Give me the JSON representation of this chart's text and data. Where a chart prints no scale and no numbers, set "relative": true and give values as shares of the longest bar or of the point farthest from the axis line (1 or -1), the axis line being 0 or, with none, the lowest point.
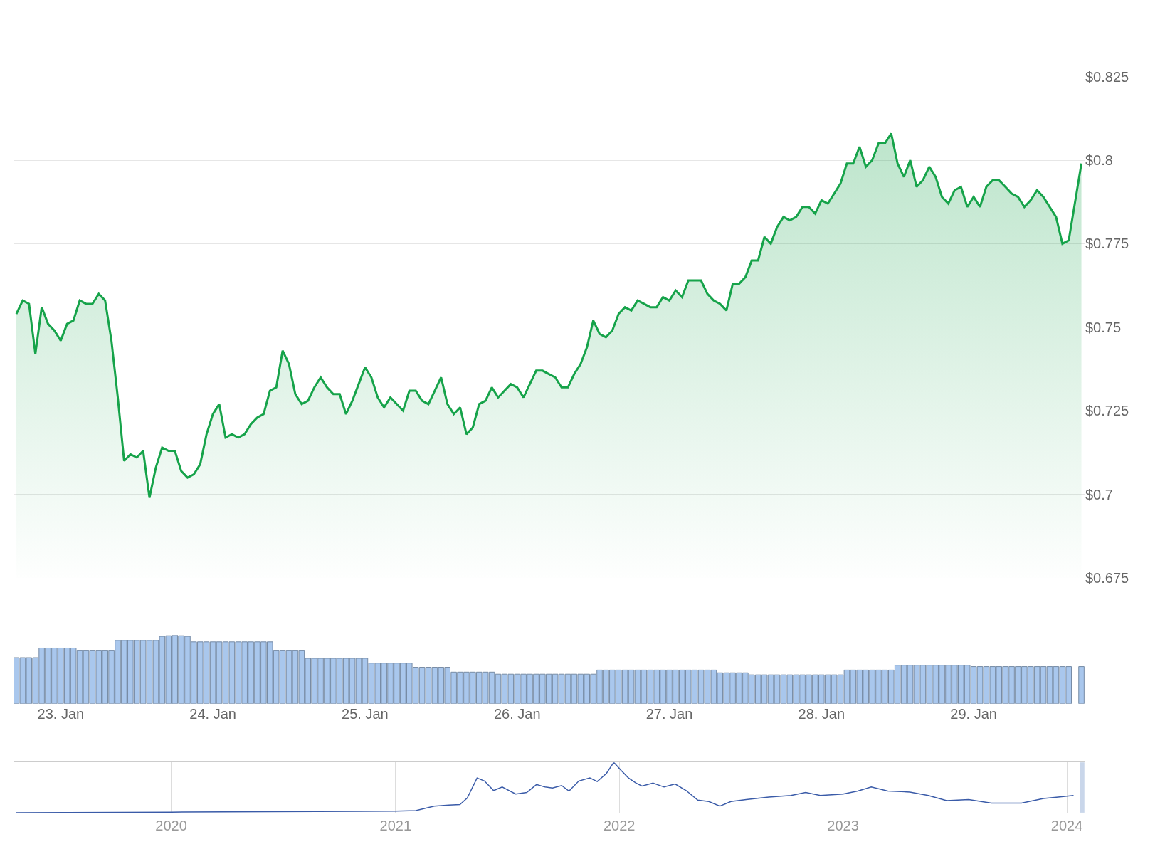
{
  "chart_data": [
    {
      "type": "area",
      "tick_labels": "y",
      "grid": "y",
      "xlim": [
        "2024-01-22T16:40",
        "2024-01-29T17:30"
      ],
      "ylim": [
        0.675,
        0.825
      ],
      "yticks": [
        {
          "value": 0.675,
          "label": "$0.675"
        },
        {
          "value": 0.7,
          "label": "$0.7"
        },
        {
          "value": 0.725,
          "label": "$0.725"
        },
        {
          "value": 0.75,
          "label": "$0.75"
        },
        {
          "value": 0.775,
          "label": "$0.775"
        },
        {
          "value": 0.8,
          "label": "$0.8"
        },
        {
          "value": 0.825,
          "label": "$0.825"
        }
      ],
      "x": [
        "2024-01-22T17:00",
        "2024-01-22T18:00",
        "2024-01-22T19:00",
        "2024-01-22T20:00",
        "2024-01-22T21:00",
        "2024-01-22T22:00",
        "2024-01-22T23:00",
        "2024-01-23T00:00",
        "2024-01-23T01:00",
        "2024-01-23T02:00",
        "2024-01-23T03:00",
        "2024-01-23T04:00",
        "2024-01-23T05:00",
        "2024-01-23T06:00",
        "2024-01-23T07:00",
        "2024-01-23T08:00",
        "2024-01-23T09:00",
        "2024-01-23T10:00",
        "2024-01-23T11:00",
        "2024-01-23T12:00",
        "2024-01-23T13:00",
        "2024-01-23T14:00",
        "2024-01-23T15:00",
        "2024-01-23T16:00",
        "2024-01-23T17:00",
        "2024-01-23T18:00",
        "2024-01-23T19:00",
        "2024-01-23T20:00",
        "2024-01-23T21:00",
        "2024-01-23T22:00",
        "2024-01-23T23:00",
        "2024-01-24T00:00",
        "2024-01-24T01:00",
        "2024-01-24T02:00",
        "2024-01-24T03:00",
        "2024-01-24T04:00",
        "2024-01-24T05:00",
        "2024-01-24T06:00",
        "2024-01-24T07:00",
        "2024-01-24T08:00",
        "2024-01-24T09:00",
        "2024-01-24T10:00",
        "2024-01-24T11:00",
        "2024-01-24T12:00",
        "2024-01-24T13:00",
        "2024-01-24T14:00",
        "2024-01-24T15:00",
        "2024-01-24T16:00",
        "2024-01-24T17:00",
        "2024-01-24T18:00",
        "2024-01-24T19:00",
        "2024-01-24T20:00",
        "2024-01-24T21:00",
        "2024-01-24T22:00",
        "2024-01-24T23:00",
        "2024-01-25T00:00",
        "2024-01-25T01:00",
        "2024-01-25T02:00",
        "2024-01-25T03:00",
        "2024-01-25T04:00",
        "2024-01-25T05:00",
        "2024-01-25T06:00",
        "2024-01-25T07:00",
        "2024-01-25T08:00",
        "2024-01-25T09:00",
        "2024-01-25T10:00",
        "2024-01-25T11:00",
        "2024-01-25T12:00",
        "2024-01-25T13:00",
        "2024-01-25T14:00",
        "2024-01-25T15:00",
        "2024-01-25T16:00",
        "2024-01-25T17:00",
        "2024-01-25T18:00",
        "2024-01-25T19:00",
        "2024-01-25T20:00",
        "2024-01-25T21:00",
        "2024-01-25T22:00",
        "2024-01-25T23:00",
        "2024-01-26T00:00",
        "2024-01-26T01:00",
        "2024-01-26T02:00",
        "2024-01-26T03:00",
        "2024-01-26T04:00",
        "2024-01-26T05:00",
        "2024-01-26T06:00",
        "2024-01-26T07:00",
        "2024-01-26T08:00",
        "2024-01-26T09:00",
        "2024-01-26T10:00",
        "2024-01-26T11:00",
        "2024-01-26T12:00",
        "2024-01-26T13:00",
        "2024-01-26T14:00",
        "2024-01-26T15:00",
        "2024-01-26T16:00",
        "2024-01-26T17:00",
        "2024-01-26T18:00",
        "2024-01-26T19:00",
        "2024-01-26T20:00",
        "2024-01-26T21:00",
        "2024-01-26T22:00",
        "2024-01-26T23:00",
        "2024-01-27T00:00",
        "2024-01-27T01:00",
        "2024-01-27T02:00",
        "2024-01-27T03:00",
        "2024-01-27T04:00",
        "2024-01-27T05:00",
        "2024-01-27T06:00",
        "2024-01-27T07:00",
        "2024-01-27T08:00",
        "2024-01-27T09:00",
        "2024-01-27T10:00",
        "2024-01-27T11:00",
        "2024-01-27T12:00",
        "2024-01-27T13:00",
        "2024-01-27T14:00",
        "2024-01-27T15:00",
        "2024-01-27T16:00",
        "2024-01-27T17:00",
        "2024-01-27T18:00",
        "2024-01-27T19:00",
        "2024-01-27T20:00",
        "2024-01-27T21:00",
        "2024-01-27T22:00",
        "2024-01-27T23:00",
        "2024-01-28T00:00",
        "2024-01-28T01:00",
        "2024-01-28T02:00",
        "2024-01-28T03:00",
        "2024-01-28T04:00",
        "2024-01-28T05:00",
        "2024-01-28T06:00",
        "2024-01-28T07:00",
        "2024-01-28T08:00",
        "2024-01-28T09:00",
        "2024-01-28T10:00",
        "2024-01-28T11:00",
        "2024-01-28T12:00",
        "2024-01-28T13:00",
        "2024-01-28T14:00",
        "2024-01-28T15:00",
        "2024-01-28T16:00",
        "2024-01-28T17:00",
        "2024-01-28T18:00",
        "2024-01-28T19:00",
        "2024-01-28T20:00",
        "2024-01-28T21:00",
        "2024-01-28T22:00",
        "2024-01-28T23:00",
        "2024-01-29T00:00",
        "2024-01-29T01:00",
        "2024-01-29T02:00",
        "2024-01-29T03:00",
        "2024-01-29T04:00",
        "2024-01-29T05:00",
        "2024-01-29T06:00",
        "2024-01-29T07:00",
        "2024-01-29T08:00",
        "2024-01-29T09:00",
        "2024-01-29T10:00",
        "2024-01-29T11:00",
        "2024-01-29T12:00",
        "2024-01-29T13:00",
        "2024-01-29T14:00",
        "2024-01-29T15:00",
        "2024-01-29T17:00"
      ],
      "series": [
        {
          "color": "#16a34a",
          "values": [
            0.754,
            0.758,
            0.757,
            0.742,
            0.756,
            0.751,
            0.749,
            0.746,
            0.751,
            0.752,
            0.758,
            0.757,
            0.757,
            0.76,
            0.758,
            0.746,
            0.729,
            0.71,
            0.712,
            0.711,
            0.713,
            0.699,
            0.708,
            0.714,
            0.713,
            0.713,
            0.707,
            0.705,
            0.706,
            0.709,
            0.718,
            0.724,
            0.727,
            0.717,
            0.718,
            0.717,
            0.718,
            0.721,
            0.723,
            0.724,
            0.731,
            0.732,
            0.743,
            0.739,
            0.73,
            0.727,
            0.728,
            0.732,
            0.735,
            0.732,
            0.73,
            0.73,
            0.724,
            0.728,
            0.733,
            0.738,
            0.735,
            0.729,
            0.726,
            0.729,
            0.727,
            0.725,
            0.731,
            0.731,
            0.728,
            0.727,
            0.731,
            0.735,
            0.727,
            0.724,
            0.726,
            0.718,
            0.72,
            0.727,
            0.728,
            0.732,
            0.729,
            0.731,
            0.733,
            0.732,
            0.729,
            0.733,
            0.737,
            0.737,
            0.736,
            0.735,
            0.732,
            0.732,
            0.736,
            0.739,
            0.744,
            0.752,
            0.748,
            0.747,
            0.749,
            0.754,
            0.756,
            0.755,
            0.758,
            0.757,
            0.756,
            0.756,
            0.759,
            0.758,
            0.761,
            0.759,
            0.764,
            0.764,
            0.764,
            0.76,
            0.758,
            0.757,
            0.755,
            0.763,
            0.763,
            0.765,
            0.77,
            0.77,
            0.777,
            0.775,
            0.78,
            0.783,
            0.782,
            0.783,
            0.786,
            0.786,
            0.784,
            0.788,
            0.787,
            0.79,
            0.793,
            0.799,
            0.799,
            0.804,
            0.798,
            0.8,
            0.805,
            0.805,
            0.808,
            0.799,
            0.795,
            0.8,
            0.792,
            0.794,
            0.798,
            0.795,
            0.789,
            0.787,
            0.791,
            0.792,
            0.786,
            0.789,
            0.786,
            0.792,
            0.794,
            0.794,
            0.792,
            0.79,
            0.789,
            0.786,
            0.788,
            0.791,
            0.789,
            0.786,
            0.783,
            0.775,
            0.776,
            0.799
          ]
        }
      ]
    },
    {
      "type": "bar",
      "relative": true,
      "tick_labels": "x",
      "xlim": [
        "2024-01-22T16:40",
        "2024-01-29T17:30"
      ],
      "xticks": [
        {
          "value": "2024-01-23",
          "label": "23. Jan"
        },
        {
          "value": "2024-01-24",
          "label": "24. Jan"
        },
        {
          "value": "2024-01-25",
          "label": "25. Jan"
        },
        {
          "value": "2024-01-26",
          "label": "26. Jan"
        },
        {
          "value": "2024-01-27",
          "label": "27. Jan"
        },
        {
          "value": "2024-01-28",
          "label": "28. Jan"
        },
        {
          "value": "2024-01-29",
          "label": "29. Jan"
        }
      ],
      "x": [
        "2024-01-22T17:00",
        "2024-01-22T18:00",
        "2024-01-22T19:00",
        "2024-01-22T20:00",
        "2024-01-22T21:00",
        "2024-01-22T22:00",
        "2024-01-22T23:00",
        "2024-01-23T00:00",
        "2024-01-23T01:00",
        "2024-01-23T02:00",
        "2024-01-23T03:00",
        "2024-01-23T04:00",
        "2024-01-23T05:00",
        "2024-01-23T06:00",
        "2024-01-23T07:00",
        "2024-01-23T08:00",
        "2024-01-23T09:00",
        "2024-01-23T10:00",
        "2024-01-23T11:00",
        "2024-01-23T12:00",
        "2024-01-23T13:00",
        "2024-01-23T14:00",
        "2024-01-23T15:00",
        "2024-01-23T16:00",
        "2024-01-23T17:00",
        "2024-01-23T18:00",
        "2024-01-23T19:00",
        "2024-01-23T20:00",
        "2024-01-23T21:00",
        "2024-01-23T22:00",
        "2024-01-23T23:00",
        "2024-01-24T00:00",
        "2024-01-24T01:00",
        "2024-01-24T02:00",
        "2024-01-24T03:00",
        "2024-01-24T04:00",
        "2024-01-24T05:00",
        "2024-01-24T06:00",
        "2024-01-24T07:00",
        "2024-01-24T08:00",
        "2024-01-24T09:00",
        "2024-01-24T10:00",
        "2024-01-24T11:00",
        "2024-01-24T12:00",
        "2024-01-24T13:00",
        "2024-01-24T14:00",
        "2024-01-24T15:00",
        "2024-01-24T16:00",
        "2024-01-24T17:00",
        "2024-01-24T18:00",
        "2024-01-24T19:00",
        "2024-01-24T20:00",
        "2024-01-24T21:00",
        "2024-01-24T22:00",
        "2024-01-24T23:00",
        "2024-01-25T00:00",
        "2024-01-25T01:00",
        "2024-01-25T02:00",
        "2024-01-25T03:00",
        "2024-01-25T04:00",
        "2024-01-25T05:00",
        "2024-01-25T06:00",
        "2024-01-25T07:00",
        "2024-01-25T08:00",
        "2024-01-25T09:00",
        "2024-01-25T10:00",
        "2024-01-25T11:00",
        "2024-01-25T12:00",
        "2024-01-25T13:00",
        "2024-01-25T14:00",
        "2024-01-25T15:00",
        "2024-01-25T16:00",
        "2024-01-25T17:00",
        "2024-01-25T18:00",
        "2024-01-25T19:00",
        "2024-01-25T20:00",
        "2024-01-25T21:00",
        "2024-01-25T22:00",
        "2024-01-25T23:00",
        "2024-01-26T00:00",
        "2024-01-26T01:00",
        "2024-01-26T02:00",
        "2024-01-26T03:00",
        "2024-01-26T04:00",
        "2024-01-26T05:00",
        "2024-01-26T06:00",
        "2024-01-26T07:00",
        "2024-01-26T08:00",
        "2024-01-26T09:00",
        "2024-01-26T10:00",
        "2024-01-26T11:00",
        "2024-01-26T12:00",
        "2024-01-26T13:00",
        "2024-01-26T14:00",
        "2024-01-26T15:00",
        "2024-01-26T16:00",
        "2024-01-26T17:00",
        "2024-01-26T18:00",
        "2024-01-26T19:00",
        "2024-01-26T20:00",
        "2024-01-26T21:00",
        "2024-01-26T22:00",
        "2024-01-26T23:00",
        "2024-01-27T00:00",
        "2024-01-27T01:00",
        "2024-01-27T02:00",
        "2024-01-27T03:00",
        "2024-01-27T04:00",
        "2024-01-27T05:00",
        "2024-01-27T06:00",
        "2024-01-27T07:00",
        "2024-01-27T08:00",
        "2024-01-27T09:00",
        "2024-01-27T10:00",
        "2024-01-27T11:00",
        "2024-01-27T12:00",
        "2024-01-27T13:00",
        "2024-01-27T14:00",
        "2024-01-27T15:00",
        "2024-01-27T16:00",
        "2024-01-27T17:00",
        "2024-01-27T18:00",
        "2024-01-27T19:00",
        "2024-01-27T20:00",
        "2024-01-27T21:00",
        "2024-01-27T22:00",
        "2024-01-27T23:00",
        "2024-01-28T00:00",
        "2024-01-28T01:00",
        "2024-01-28T02:00",
        "2024-01-28T03:00",
        "2024-01-28T04:00",
        "2024-01-28T05:00",
        "2024-01-28T06:00",
        "2024-01-28T07:00",
        "2024-01-28T08:00",
        "2024-01-28T09:00",
        "2024-01-28T10:00",
        "2024-01-28T11:00",
        "2024-01-28T12:00",
        "2024-01-28T13:00",
        "2024-01-28T14:00",
        "2024-01-28T15:00",
        "2024-01-28T16:00",
        "2024-01-28T17:00",
        "2024-01-28T18:00",
        "2024-01-28T19:00",
        "2024-01-28T20:00",
        "2024-01-28T21:00",
        "2024-01-28T22:00",
        "2024-01-28T23:00",
        "2024-01-29T00:00",
        "2024-01-29T01:00",
        "2024-01-29T02:00",
        "2024-01-29T03:00",
        "2024-01-29T04:00",
        "2024-01-29T05:00",
        "2024-01-29T06:00",
        "2024-01-29T07:00",
        "2024-01-29T08:00",
        "2024-01-29T09:00",
        "2024-01-29T10:00",
        "2024-01-29T11:00",
        "2024-01-29T12:00",
        "2024-01-29T13:00",
        "2024-01-29T14:00",
        "2024-01-29T15:00",
        "2024-01-29T17:00"
      ],
      "series": [
        {
          "color": "#a9c7ed",
          "values": [
            0.67,
            0.67,
            0.67,
            0.67,
            0.81,
            0.81,
            0.81,
            0.81,
            0.81,
            0.81,
            0.77,
            0.77,
            0.77,
            0.77,
            0.77,
            0.77,
            0.92,
            0.92,
            0.92,
            0.92,
            0.92,
            0.92,
            0.92,
            0.98,
            0.99,
            1,
            0.99,
            0.98,
            0.9,
            0.9,
            0.9,
            0.9,
            0.9,
            0.9,
            0.9,
            0.9,
            0.9,
            0.9,
            0.9,
            0.9,
            0.9,
            0.77,
            0.77,
            0.77,
            0.77,
            0.77,
            0.66,
            0.66,
            0.66,
            0.66,
            0.66,
            0.66,
            0.66,
            0.66,
            0.66,
            0.66,
            0.59,
            0.59,
            0.59,
            0.59,
            0.59,
            0.59,
            0.59,
            0.53,
            0.53,
            0.53,
            0.53,
            0.53,
            0.53,
            0.46,
            0.46,
            0.46,
            0.46,
            0.46,
            0.46,
            0.46,
            0.43,
            0.43,
            0.43,
            0.43,
            0.43,
            0.43,
            0.43,
            0.43,
            0.43,
            0.43,
            0.43,
            0.43,
            0.43,
            0.43,
            0.43,
            0.43,
            0.49,
            0.49,
            0.49,
            0.49,
            0.49,
            0.49,
            0.49,
            0.49,
            0.49,
            0.49,
            0.49,
            0.49,
            0.49,
            0.49,
            0.49,
            0.49,
            0.49,
            0.49,
            0.49,
            0.45,
            0.45,
            0.45,
            0.45,
            0.45,
            0.42,
            0.42,
            0.42,
            0.42,
            0.42,
            0.42,
            0.42,
            0.42,
            0.42,
            0.42,
            0.42,
            0.42,
            0.42,
            0.42,
            0.42,
            0.49,
            0.49,
            0.49,
            0.49,
            0.49,
            0.49,
            0.49,
            0.49,
            0.56,
            0.56,
            0.56,
            0.56,
            0.56,
            0.56,
            0.56,
            0.56,
            0.56,
            0.56,
            0.56,
            0.56,
            0.54,
            0.54,
            0.54,
            0.54,
            0.54,
            0.54,
            0.54,
            0.54,
            0.54,
            0.54,
            0.54,
            0.54,
            0.54,
            0.54,
            0.54,
            0.54,
            0.54
          ]
        }
      ]
    },
    {
      "type": "line",
      "relative": true,
      "tick_labels": "x",
      "grid": "x",
      "xlim": [
        "2019-04-20",
        "2024-01-30"
      ],
      "xticks": [
        {
          "value": "2020-01-01",
          "label": "2020"
        },
        {
          "value": "2021-01-01",
          "label": "2021"
        },
        {
          "value": "2022-01-01",
          "label": "2022"
        },
        {
          "value": "2023-01-01",
          "label": "2023"
        },
        {
          "value": "2024-01-01",
          "label": "2024"
        }
      ],
      "bands": [
        {
          "axis": "x",
          "from": "2024-01-22T17:00",
          "to": "2024-01-29T17:00",
          "color": "#c9d6ea"
        }
      ],
      "series": [
        {
          "color": "#3a5ba8",
          "x": [
            "2019-04-23",
            "2020-01-01",
            "2021-01-01",
            "2021-02-03",
            "2021-03-05",
            "2021-03-29",
            "2021-04-16",
            "2021-04-28",
            "2021-05-14",
            "2021-05-26",
            "2021-06-10",
            "2021-06-24",
            "2021-07-16",
            "2021-08-03",
            "2021-08-19",
            "2021-09-02",
            "2021-09-14",
            "2021-09-29",
            "2021-10-11",
            "2021-10-27",
            "2021-11-14",
            "2021-11-26",
            "2021-12-11",
            "2021-12-23",
            "2022-01-04",
            "2022-01-16",
            "2022-01-28",
            "2022-02-07",
            "2022-02-25",
            "2022-03-15",
            "2022-04-02",
            "2022-04-20",
            "2022-05-09",
            "2022-05-27",
            "2022-06-14",
            "2022-07-02",
            "2022-07-27",
            "2022-09-02",
            "2022-10-08",
            "2022-11-01",
            "2022-11-25",
            "2023-01-01",
            "2023-01-25",
            "2023-02-16",
            "2023-03-15",
            "2023-04-20",
            "2023-05-20",
            "2023-06-19",
            "2023-07-25",
            "2023-08-31",
            "2023-10-19",
            "2023-11-24",
            "2023-12-18",
            "2024-01-12"
          ],
          "values": [
            0,
            0.01,
            0.03,
            0.04,
            0.13,
            0.15,
            0.16,
            0.29,
            0.69,
            0.63,
            0.44,
            0.51,
            0.37,
            0.4,
            0.56,
            0.51,
            0.49,
            0.54,
            0.43,
            0.63,
            0.69,
            0.62,
            0.78,
            1,
            0.84,
            0.69,
            0.59,
            0.53,
            0.59,
            0.51,
            0.57,
            0.44,
            0.25,
            0.22,
            0.13,
            0.22,
            0.26,
            0.31,
            0.34,
            0.4,
            0.34,
            0.37,
            0.43,
            0.51,
            0.43,
            0.41,
            0.34,
            0.24,
            0.26,
            0.19,
            0.19,
            0.28,
            0.31,
            0.34
          ]
        }
      ]
    }
  ]
}
